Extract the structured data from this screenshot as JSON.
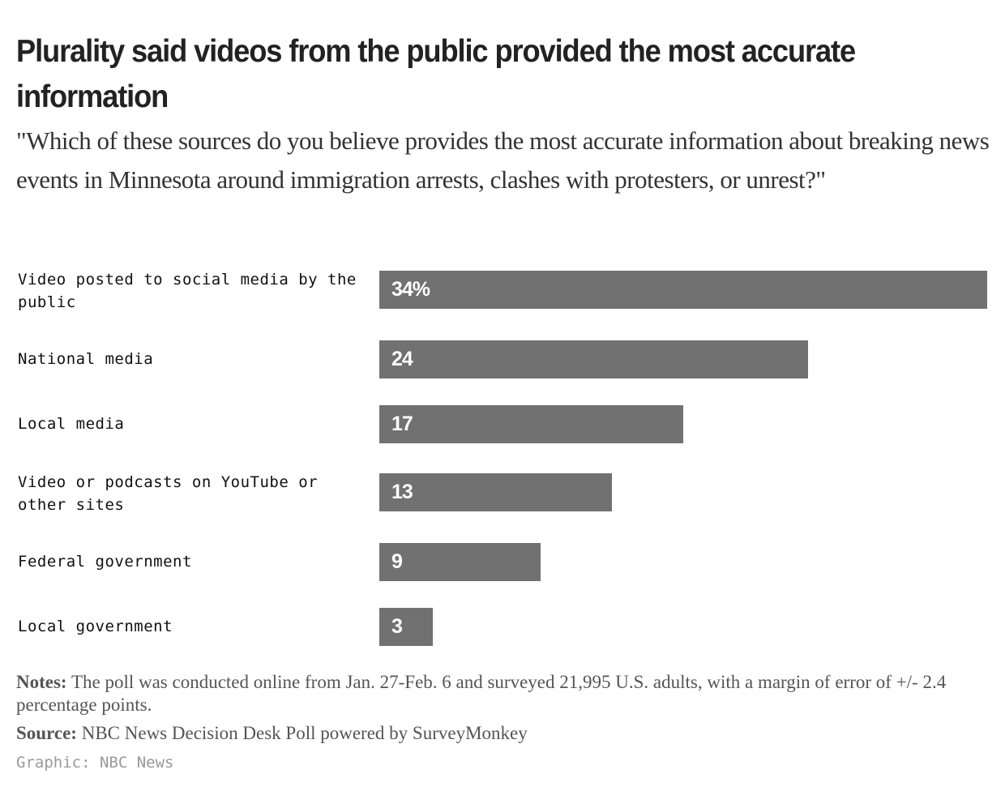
{
  "chart_data": {
    "type": "bar",
    "orientation": "horizontal",
    "title": "Plurality said videos from the public provided the most accurate information",
    "subtitle": "\"Which of these sources do you believe provides the most accurate information about breaking news events in Minnesota around immigration arrests, clashes with protesters, or unrest?\"",
    "categories": [
      "Video posted to social media by the public",
      "National media",
      "Local media",
      "Video or podcasts on YouTube or other sites",
      "Federal government",
      "Local government"
    ],
    "values": [
      34,
      24,
      17,
      13,
      9,
      3
    ],
    "value_labels": [
      "34%",
      "24",
      "17",
      "13",
      "9",
      "3"
    ],
    "unit": "%",
    "xlim": [
      0,
      34
    ],
    "grid": false,
    "bar_color": "#717171"
  },
  "notes_label": "Notes:",
  "notes": "The poll was conducted online from Jan. 27-Feb. 6 and surveyed 21,995 U.S. adults, with a margin of error of +/- 2.4 percentage points.",
  "source_label": "Source:",
  "source": "NBC News Decision Desk Poll powered by SurveyMonkey",
  "credit": "Graphic: NBC News"
}
